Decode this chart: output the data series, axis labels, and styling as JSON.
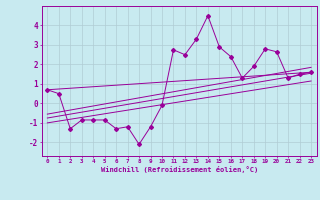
{
  "title": "",
  "xlabel": "Windchill (Refroidissement éolien,°C)",
  "ylabel": "",
  "bg_color": "#c8eaf0",
  "line_color": "#990099",
  "grid_color": "#b0ccd4",
  "xlim": [
    -0.5,
    23.5
  ],
  "ylim": [
    -2.7,
    5.0
  ],
  "yticks": [
    -2,
    -1,
    0,
    1,
    2,
    3,
    4
  ],
  "xticks": [
    0,
    1,
    2,
    3,
    4,
    5,
    6,
    7,
    8,
    9,
    10,
    11,
    12,
    13,
    14,
    15,
    16,
    17,
    18,
    19,
    20,
    21,
    22,
    23
  ],
  "scatter_x": [
    0,
    1,
    2,
    3,
    4,
    5,
    6,
    7,
    8,
    9,
    10,
    11,
    12,
    13,
    14,
    15,
    16,
    17,
    18,
    19,
    20,
    21,
    22,
    23
  ],
  "scatter_y": [
    0.7,
    0.5,
    -1.3,
    -0.85,
    -0.85,
    -0.85,
    -1.3,
    -1.2,
    -2.1,
    -1.2,
    -0.1,
    2.75,
    2.5,
    3.3,
    4.5,
    2.9,
    2.4,
    1.3,
    1.9,
    2.8,
    2.65,
    1.3,
    1.5,
    1.6
  ],
  "line1_x": [
    0,
    23
  ],
  "line1_y": [
    0.7,
    1.6
  ],
  "line2_x": [
    0,
    23
  ],
  "line2_y": [
    -0.55,
    1.85
  ],
  "line3_x": [
    0,
    23
  ],
  "line3_y": [
    -0.75,
    1.55
  ],
  "line4_x": [
    0,
    23
  ],
  "line4_y": [
    -1.0,
    1.15
  ]
}
